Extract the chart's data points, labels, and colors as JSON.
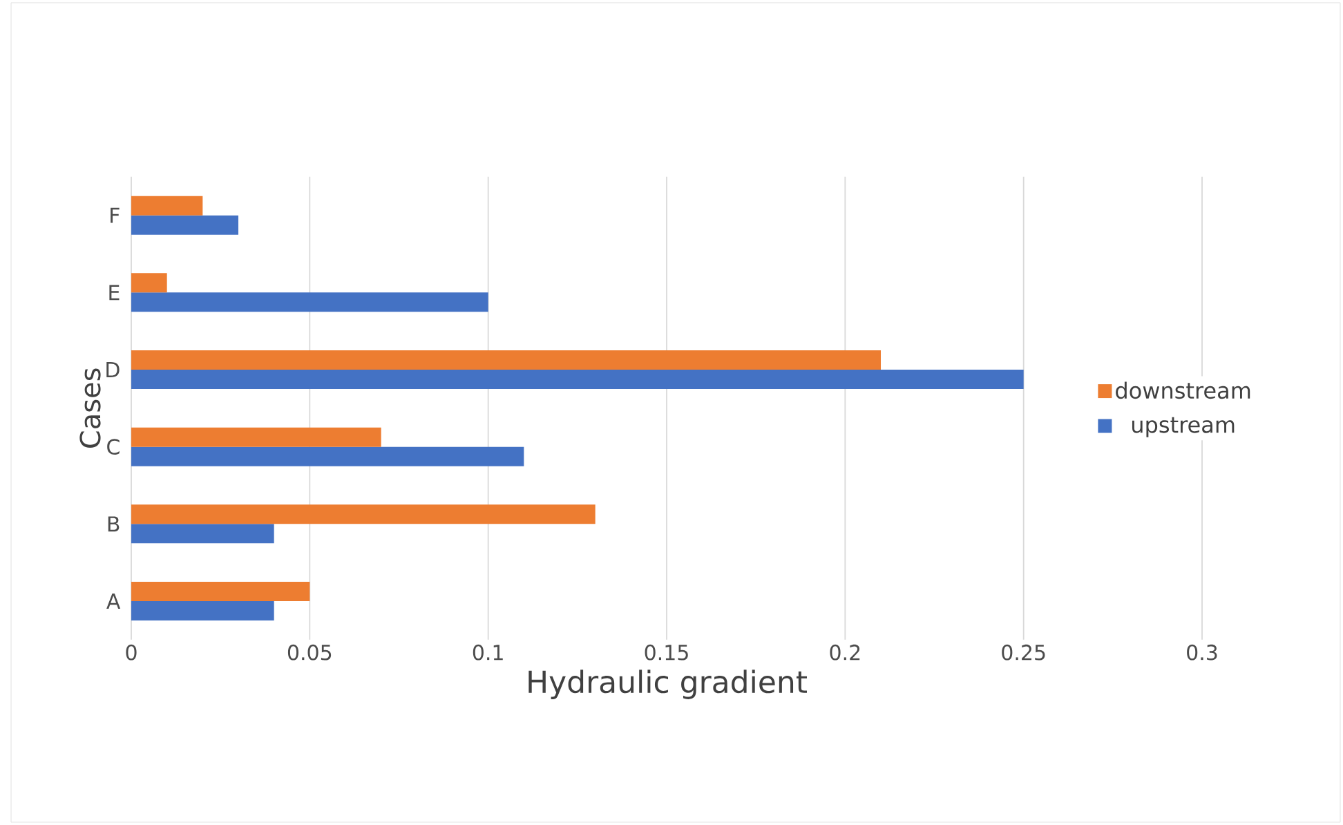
{
  "chart_data": {
    "type": "bar",
    "orientation": "horizontal",
    "xlabel": "Hydraulic gradient",
    "ylabel": "Cases",
    "categories": [
      "F",
      "E",
      "D",
      "C",
      "B",
      "A"
    ],
    "series": [
      {
        "name": "upstream",
        "color": "#4472c4",
        "values": [
          0.03,
          0.1,
          0.25,
          0.11,
          0.04,
          0.04
        ]
      },
      {
        "name": "downstream",
        "color": "#ed7d31",
        "values": [
          0.02,
          0.01,
          0.21,
          0.07,
          0.13,
          0.05
        ]
      }
    ],
    "xlim": [
      0,
      0.3
    ],
    "xticks": [
      0,
      0.05,
      0.1,
      0.15,
      0.2,
      0.25,
      0.3
    ],
    "grid": "x",
    "legend": "right"
  }
}
